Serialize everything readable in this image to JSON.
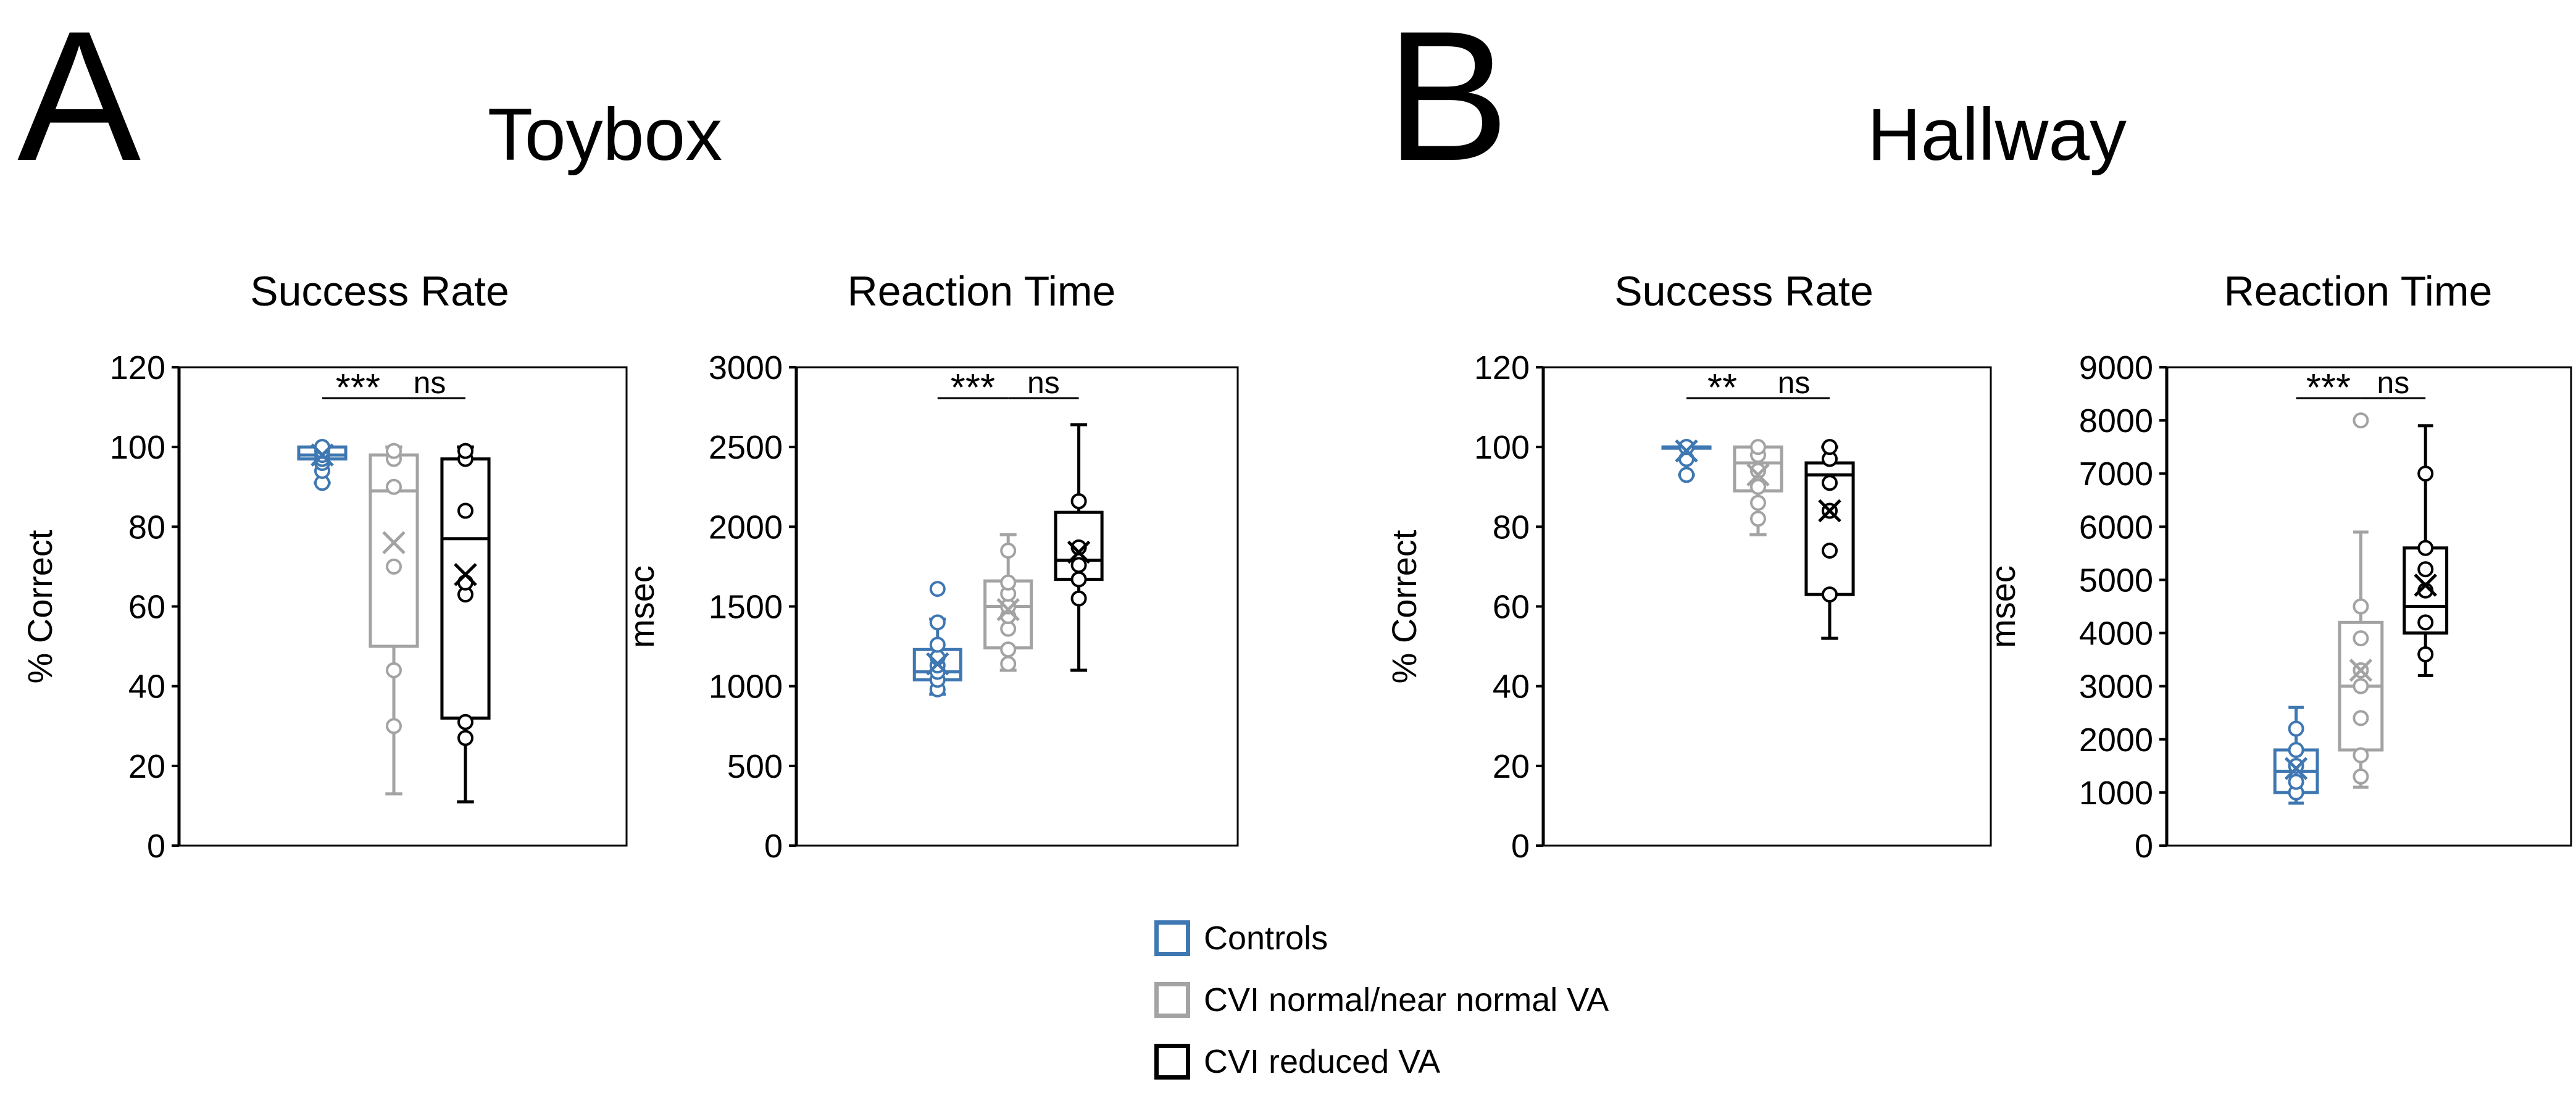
{
  "panels": [
    {
      "letter": "A",
      "title": "Toybox"
    },
    {
      "letter": "B",
      "title": "Hallway"
    }
  ],
  "legend": [
    {
      "label": "Controls",
      "color": "#3e77b1"
    },
    {
      "label": "CVI normal/near normal VA",
      "color": "#a3a3a3"
    },
    {
      "label": "CVI reduced VA",
      "color": "#000000"
    }
  ],
  "colors": {
    "controls": "#3e77b1",
    "cvi_normal": "#a3a3a3",
    "cvi_reduced": "#000000"
  },
  "chart_data": [
    {
      "type": "box",
      "panel": "A",
      "title": "Success Rate",
      "ylabel": "% Correct",
      "ylim": [
        0,
        120
      ],
      "yticks": [
        "0",
        "20",
        "40",
        "60",
        "80",
        "100",
        "120"
      ],
      "groups": [
        {
          "name": "Controls",
          "min": 91,
          "q1": 97,
          "median": 98,
          "q3": 100,
          "max": 100,
          "mean": 98,
          "points": [
            91,
            94,
            96,
            97,
            98,
            99,
            100,
            100
          ]
        },
        {
          "name": "CVI normal/near normal VA",
          "min": 13,
          "q1": 50,
          "median": 89,
          "q3": 98,
          "max": 100,
          "mean": 76,
          "points": [
            30,
            44,
            70,
            90,
            97,
            99
          ]
        },
        {
          "name": "CVI reduced VA",
          "min": 11,
          "q1": 32,
          "median": 77,
          "q3": 97,
          "max": 100,
          "mean": 68,
          "points": [
            27,
            31,
            63,
            66,
            84,
            97,
            99
          ]
        }
      ],
      "significance": [
        {
          "label": "***",
          "from": 0,
          "to": 1
        },
        {
          "label": "ns",
          "from": 1,
          "to": 2
        }
      ]
    },
    {
      "type": "box",
      "panel": "A",
      "title": "Reaction Time",
      "ylabel": "msec",
      "ylim": [
        0,
        3000
      ],
      "yticks": [
        "0",
        "500",
        "1000",
        "1500",
        "2000",
        "2500",
        "3000"
      ],
      "groups": [
        {
          "name": "Controls",
          "min": 950,
          "q1": 1040,
          "median": 1090,
          "q3": 1230,
          "max": 1420,
          "mean": 1140,
          "points": [
            980,
            1040,
            1090,
            1130,
            1180,
            1260,
            1400,
            1610
          ]
        },
        {
          "name": "CVI normal/near normal VA",
          "min": 1100,
          "q1": 1240,
          "median": 1500,
          "q3": 1660,
          "max": 1950,
          "mean": 1480,
          "points": [
            1140,
            1230,
            1360,
            1440,
            1500,
            1580,
            1650,
            1850
          ]
        },
        {
          "name": "CVI reduced VA",
          "min": 1100,
          "q1": 1670,
          "median": 1790,
          "q3": 2090,
          "max": 2640,
          "mean": 1840,
          "points": [
            1550,
            1670,
            1760,
            1870,
            2160
          ]
        }
      ],
      "significance": [
        {
          "label": "***",
          "from": 0,
          "to": 1
        },
        {
          "label": "ns",
          "from": 1,
          "to": 2
        }
      ]
    },
    {
      "type": "box",
      "panel": "B",
      "title": "Success Rate",
      "ylabel": "% Correct",
      "ylim": [
        0,
        120
      ],
      "yticks": [
        "0",
        "20",
        "40",
        "60",
        "80",
        "100",
        "120"
      ],
      "groups": [
        {
          "name": "Controls",
          "min": 93,
          "q1": 100,
          "median": 100,
          "q3": 100,
          "max": 100,
          "mean": 99,
          "points": [
            93,
            97,
            100,
            100,
            100
          ]
        },
        {
          "name": "CVI normal/near normal VA",
          "min": 78,
          "q1": 89,
          "median": 96,
          "q3": 100,
          "max": 100,
          "mean": 93,
          "points": [
            82,
            86,
            90,
            94,
            98,
            100
          ]
        },
        {
          "name": "CVI reduced VA",
          "min": 52,
          "q1": 63,
          "median": 93,
          "q3": 96,
          "max": 100,
          "mean": 84,
          "points": [
            63,
            74,
            84,
            91,
            97,
            100
          ]
        }
      ],
      "significance": [
        {
          "label": "**",
          "from": 0,
          "to": 1
        },
        {
          "label": "ns",
          "from": 1,
          "to": 2
        }
      ]
    },
    {
      "type": "box",
      "panel": "B",
      "title": "Reaction Time",
      "ylabel": "msec",
      "ylim": [
        0,
        9000
      ],
      "yticks": [
        "0",
        "1000",
        "2000",
        "3000",
        "4000",
        "5000",
        "6000",
        "7000",
        "8000",
        "9000"
      ],
      "groups": [
        {
          "name": "Controls",
          "min": 800,
          "q1": 1000,
          "median": 1400,
          "q3": 1800,
          "max": 2600,
          "mean": 1450,
          "points": [
            1000,
            1200,
            1500,
            1800,
            2200
          ]
        },
        {
          "name": "CVI normal/near normal VA",
          "min": 1100,
          "q1": 1800,
          "median": 3000,
          "q3": 4200,
          "max": 5900,
          "mean": 3300,
          "points": [
            1300,
            1700,
            2400,
            3000,
            3300,
            3900,
            4500,
            8000
          ]
        },
        {
          "name": "CVI reduced VA",
          "min": 3200,
          "q1": 4000,
          "median": 4500,
          "q3": 5600,
          "max": 7900,
          "mean": 4900,
          "points": [
            3600,
            4200,
            4800,
            5200,
            5600,
            7000
          ]
        }
      ],
      "significance": [
        {
          "label": "***",
          "from": 0,
          "to": 1
        },
        {
          "label": "ns",
          "from": 1,
          "to": 2
        }
      ]
    }
  ]
}
